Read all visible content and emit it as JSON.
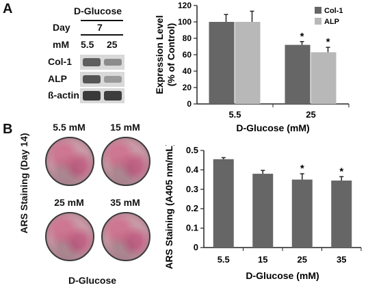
{
  "panels": {
    "a_letter": "A",
    "b_letter": "B"
  },
  "blot": {
    "header": "D-Glucose",
    "day_label": "Day",
    "day_value": "7",
    "mm_label": "mM",
    "conc_1": "5.5",
    "conc_2": "25",
    "rows": [
      "Col-1",
      "ALP",
      "ß-actin"
    ]
  },
  "ars_images": {
    "side_label": "ARS Staining (Day 14)",
    "bottom_label": "D-Glucose",
    "dishes": [
      "5.5 mM",
      "15 mM",
      "25 mM",
      "35 mM"
    ]
  },
  "colors": {
    "col1": "#666666",
    "alp": "#b8b8b8",
    "ars": "#666666"
  },
  "chart_data": [
    {
      "type": "bar",
      "categories": [
        "5.5",
        "25"
      ],
      "series": [
        {
          "name": "Col-1",
          "values": [
            100,
            72
          ],
          "errors": [
            9,
            4
          ],
          "significant": [
            false,
            true
          ]
        },
        {
          "name": "ALP",
          "values": [
            100,
            63
          ],
          "errors": [
            13,
            6
          ],
          "significant": [
            false,
            true
          ]
        }
      ],
      "xlabel": "D-Glucose (mM)",
      "ylabel": "Expression Level (% of Control)",
      "ylabel_line1": "Expression Level",
      "ylabel_line2": "(% of Control)",
      "ylim": [
        0,
        120
      ],
      "yticks": [
        0,
        20,
        40,
        60,
        80,
        100,
        120
      ],
      "legend": "top-right",
      "significance_marker": "*"
    },
    {
      "type": "bar",
      "categories": [
        "5.5",
        "15",
        "25",
        "35"
      ],
      "series": [
        {
          "values": [
            0.455,
            0.38,
            0.35,
            0.345
          ],
          "errors": [
            0.008,
            0.017,
            0.03,
            0.02
          ],
          "significant": [
            false,
            false,
            true,
            true
          ]
        }
      ],
      "xlabel": "D-Glucose (mM)",
      "ylabel": "ARS Staining (A405 nm/mL)",
      "ylim": [
        0,
        0.5
      ],
      "yticks": [
        0,
        0.1,
        0.2,
        0.3,
        0.4,
        0.5
      ],
      "ytick_labels": [
        "0",
        "0.1",
        "0.2",
        "0.3",
        "0.4",
        "0.5"
      ],
      "significance_marker": "*"
    }
  ]
}
